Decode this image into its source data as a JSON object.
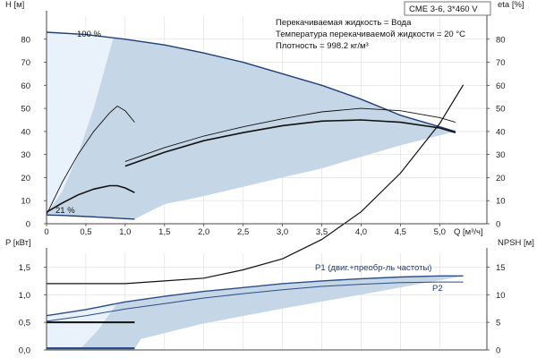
{
  "header": {
    "model": "CME 3-6, 3*460 V",
    "fluid": "Перекачиваемая жидкость = Вода",
    "temperature": "Температура перекачиваемой жидкости = 20 °C",
    "density": "Плотность = 998.2 кг/м³"
  },
  "colors": {
    "envelope_fill": "#c5d6e6",
    "envelope_light": "#e9f1fa",
    "head_curve": "#1f3f73",
    "efficiency_curve": "#111111",
    "power_curve": "#2b4e85",
    "npsh_curve": "#111111",
    "axis": "#444444",
    "grid": "#dddddd"
  },
  "chart_data": [
    {
      "type": "line",
      "name": "head-efficiency",
      "xlabel": "Q [м³/ч]",
      "ylabel_left": "H [м]",
      "ylabel_right": "eta [%]",
      "xlim": [
        0,
        5.6
      ],
      "ylim": [
        0,
        90
      ],
      "ylim_right": [
        0,
        90
      ],
      "xticks": [
        0,
        0.5,
        1,
        1.5,
        2,
        2.5,
        3,
        3.5,
        4,
        4.5,
        5
      ],
      "xtick_labels": [
        "0",
        "0,5",
        "1,0",
        "1,5",
        "2,0",
        "2,5",
        "3,0",
        "3,5",
        "4,0",
        "4,5",
        "5,0"
      ],
      "yticks": [
        0,
        10,
        20,
        30,
        40,
        50,
        60,
        70,
        80
      ],
      "grid": true,
      "annotations": [
        {
          "text": "100 %",
          "x": 0.65,
          "y": 84
        },
        {
          "text": "21 %",
          "x": 0.22,
          "y": 6
        }
      ],
      "envelope": {
        "top": [
          [
            0,
            83
          ],
          [
            0.5,
            82
          ],
          [
            1,
            80
          ],
          [
            1.5,
            77.5
          ],
          [
            2,
            74
          ],
          [
            2.5,
            70
          ],
          [
            3,
            65
          ],
          [
            3.5,
            60
          ],
          [
            4,
            54
          ],
          [
            4.5,
            47
          ],
          [
            5,
            42
          ],
          [
            5.2,
            40
          ]
        ],
        "bottom": [
          [
            5.2,
            40
          ],
          [
            4.5,
            34
          ],
          [
            4,
            29
          ],
          [
            3.5,
            24
          ],
          [
            3,
            20
          ],
          [
            2.5,
            16
          ],
          [
            2,
            12
          ],
          [
            1.5,
            8.5
          ],
          [
            1.12,
            2
          ],
          [
            0.6,
            3
          ],
          [
            0,
            3.8
          ]
        ]
      },
      "series": [
        {
          "role": "head-max",
          "values": [
            [
              0,
              83
            ],
            [
              0.5,
              82
            ],
            [
              1,
              80
            ],
            [
              1.5,
              77.5
            ],
            [
              2,
              74
            ],
            [
              2.5,
              70
            ],
            [
              3,
              65
            ],
            [
              3.5,
              60
            ],
            [
              4,
              54
            ],
            [
              4.5,
              47
            ],
            [
              5,
              42
            ],
            [
              5.2,
              40
            ]
          ]
        },
        {
          "role": "head-min",
          "values": [
            [
              0,
              3.8
            ],
            [
              0.2,
              3.6
            ],
            [
              0.4,
              3.3
            ],
            [
              0.6,
              3.0
            ],
            [
              0.8,
              2.6
            ],
            [
              1,
              2.2
            ],
            [
              1.12,
              2.0
            ]
          ]
        },
        {
          "role": "efficiency-max",
          "values": [
            [
              0,
              4
            ],
            [
              0.2,
              18
            ],
            [
              0.4,
              30
            ],
            [
              0.6,
              40
            ],
            [
              0.8,
              48
            ],
            [
              0.9,
              51
            ],
            [
              1,
              49
            ],
            [
              1.12,
              44
            ]
          ]
        },
        {
          "role": "efficiency-min",
          "values": [
            [
              0,
              5
            ],
            [
              0.2,
              9
            ],
            [
              0.4,
              12.5
            ],
            [
              0.6,
              15
            ],
            [
              0.8,
              16.5
            ],
            [
              0.9,
              16.5
            ],
            [
              1,
              15.5
            ],
            [
              1.12,
              13.5
            ]
          ]
        },
        {
          "role": "efficiency-a",
          "values": [
            [
              1,
              27
            ],
            [
              1.5,
              33
            ],
            [
              2,
              38
            ],
            [
              2.5,
              42
            ],
            [
              3,
              45.5
            ],
            [
              3.5,
              48.5
            ],
            [
              4,
              50
            ],
            [
              4.5,
              49
            ],
            [
              5,
              46
            ],
            [
              5.2,
              44
            ]
          ]
        },
        {
          "role": "efficiency-b",
          "values": [
            [
              1,
              25
            ],
            [
              1.5,
              31
            ],
            [
              2,
              36
            ],
            [
              2.5,
              39.5
            ],
            [
              3,
              42.5
            ],
            [
              3.5,
              44.5
            ],
            [
              4,
              45
            ],
            [
              4.5,
              44
            ],
            [
              5,
              41.5
            ],
            [
              5.2,
              39.5
            ]
          ]
        }
      ]
    },
    {
      "type": "line",
      "name": "power-npsh",
      "xlim": [
        0,
        5.6
      ],
      "ylabel_left": "P [кВт]",
      "ylabel_right": "NPSH [м]",
      "ylim": [
        0,
        1.75
      ],
      "ylim_right": [
        0,
        17.5
      ],
      "yticks": [
        0,
        0.5,
        1.0,
        1.5
      ],
      "ytick_labels": [
        "0,0",
        "0,5",
        "1,0",
        "1,5"
      ],
      "yticks_right": [
        0,
        5,
        10,
        15
      ],
      "grid": true,
      "envelope": {
        "top": [
          [
            0,
            0.62
          ],
          [
            1,
            0.87
          ],
          [
            2,
            1.06
          ],
          [
            3,
            1.2
          ],
          [
            4,
            1.29
          ],
          [
            5.3,
            1.34
          ]
        ],
        "bottom": [
          [
            5.3,
            1.34
          ],
          [
            4,
            1.0
          ],
          [
            3,
            0.75
          ],
          [
            2,
            0.48
          ],
          [
            1.2,
            0.2
          ],
          [
            1.12,
            0.02
          ],
          [
            0,
            0.02
          ]
        ]
      },
      "series": [
        {
          "role": "P1-max",
          "label": "P1 (двиг.+преобр-ль частоты)",
          "values": [
            [
              0,
              0.62
            ],
            [
              0.5,
              0.73
            ],
            [
              1,
              0.87
            ],
            [
              1.5,
              0.97
            ],
            [
              2,
              1.06
            ],
            [
              2.5,
              1.13
            ],
            [
              3,
              1.2
            ],
            [
              3.5,
              1.25
            ],
            [
              4,
              1.29
            ],
            [
              4.5,
              1.32
            ],
            [
              5,
              1.34
            ],
            [
              5.3,
              1.34
            ]
          ]
        },
        {
          "role": "P2-max",
          "label": "P2",
          "values": [
            [
              0,
              0.52
            ],
            [
              0.5,
              0.62
            ],
            [
              1,
              0.74
            ],
            [
              1.5,
              0.84
            ],
            [
              2,
              0.94
            ],
            [
              2.5,
              1.02
            ],
            [
              3,
              1.09
            ],
            [
              3.5,
              1.15
            ],
            [
              4,
              1.19
            ],
            [
              4.5,
              1.22
            ],
            [
              5,
              1.23
            ],
            [
              5.3,
              1.23
            ]
          ]
        },
        {
          "role": "P-min",
          "values": [
            [
              0,
              0.03
            ],
            [
              0.5,
              0.03
            ],
            [
              1,
              0.03
            ],
            [
              1.12,
              0.03
            ]
          ]
        },
        {
          "role": "NPSH",
          "values": [
            [
              0,
              1.2
            ],
            [
              0.5,
              1.2
            ],
            [
              1,
              1.2
            ],
            [
              1.5,
              1.25
            ],
            [
              2,
              1.3
            ],
            [
              2.5,
              1.45
            ],
            [
              3,
              1.65
            ],
            [
              3.5,
              2.0
            ],
            [
              4,
              2.5
            ],
            [
              4.5,
              3.2
            ],
            [
              5,
              4.1
            ],
            [
              5.3,
              4.8
            ]
          ]
        },
        {
          "role": "NPSH-min",
          "values": [
            [
              0,
              0.5
            ],
            [
              0.5,
              0.5
            ],
            [
              1,
              0.5
            ],
            [
              1.12,
              0.5
            ]
          ]
        }
      ]
    }
  ]
}
